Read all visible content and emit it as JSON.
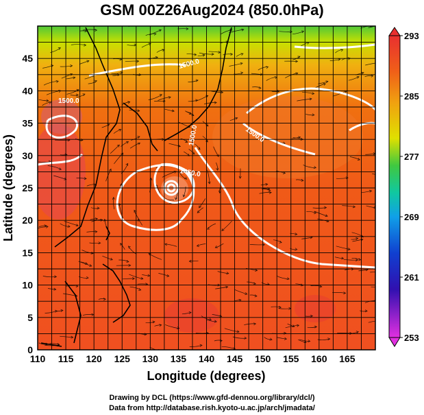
{
  "title": "GSM 00Z26Aug2024 (850.0hPa)",
  "xlabel": "Longitude (degrees)",
  "ylabel": "Latitude  (degrees)",
  "x_ticks": [
    "110",
    "115",
    "120",
    "125",
    "130",
    "135",
    "140",
    "145",
    "150",
    "155",
    "160",
    "165"
  ],
  "y_ticks": [
    "0",
    "5",
    "10",
    "15",
    "20",
    "25",
    "30",
    "35",
    "40",
    "45"
  ],
  "colorbar_ticks": [
    "293",
    "285",
    "277",
    "269",
    "261",
    "253"
  ],
  "contour_labels": [
    "1500.0",
    "1500.0",
    "1500.0",
    "1450.0",
    "1500.0"
  ],
  "credit_line1": "Drawing by DCL (https://www.gfd-dennou.org/library/dcl/)",
  "credit_line2": "Data from http://database.rish.kyoto-u.ac.jp/arch/jmadata/",
  "colors": {
    "warm": "#f25a18",
    "hot": "#e84030",
    "mid": "#f08a10",
    "cool": "#e8d000",
    "cold": "#50c838",
    "contour": "#ffffff"
  }
}
